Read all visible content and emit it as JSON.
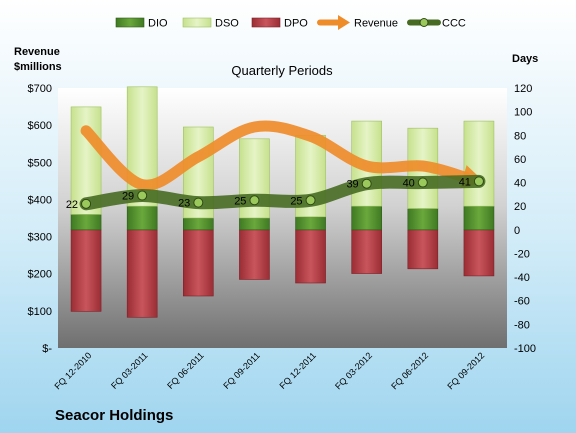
{
  "chart_data": {
    "type": "bar",
    "title": "Quarterly Periods",
    "company": "Seacor Holdings",
    "left_axis_title": [
      "Revenue",
      "$millions"
    ],
    "right_axis_title": "Days",
    "left_ticks": [
      "$-",
      "$100",
      "$200",
      "$300",
      "$400",
      "$500",
      "$600",
      "$700"
    ],
    "left_ylim": [
      0,
      700
    ],
    "right_ylim": [
      -100,
      120
    ],
    "right_ticks": [
      "-100",
      "-80",
      "-60",
      "-40",
      "-20",
      "0",
      "20",
      "40",
      "60",
      "80",
      "100",
      "120"
    ],
    "categories": [
      "FQ 12-2010",
      "FQ 03-2011",
      "FQ 06-2011",
      "FQ 09-2011",
      "FQ 12-2011",
      "FQ 03-2012",
      "FQ 06-2012",
      "FQ 09-2012"
    ],
    "legend": [
      "DIO",
      "DSO",
      "DPO",
      "Revenue",
      "CCC"
    ],
    "series": [
      {
        "name": "DIO",
        "axis": "right",
        "values": [
          13,
          20,
          10,
          10,
          11,
          20,
          18,
          20
        ]
      },
      {
        "name": "DSO",
        "axis": "right",
        "values": [
          91,
          101,
          77,
          67,
          69,
          72,
          68,
          72
        ]
      },
      {
        "name": "DPO",
        "axis": "right",
        "values": [
          -69,
          -74,
          -56,
          -42,
          -45,
          -37,
          -33,
          -39
        ]
      },
      {
        "name": "Revenue",
        "axis": "left",
        "values": [
          585,
          440,
          515,
          595,
          570,
          490,
          490,
          450
        ]
      },
      {
        "name": "CCC",
        "axis": "right",
        "values": [
          22,
          29,
          23,
          25,
          25,
          39,
          40,
          41
        ]
      }
    ],
    "ccc_labels": [
      "22",
      "29",
      "23",
      "25",
      "25",
      "39",
      "40",
      "41"
    ],
    "colors": {
      "DIO": "#4e8f2c",
      "DSO": "#d9ecb0",
      "DPO": "#b53b43",
      "Revenue": "#ef8c2a",
      "CCC": "#55782a"
    }
  }
}
